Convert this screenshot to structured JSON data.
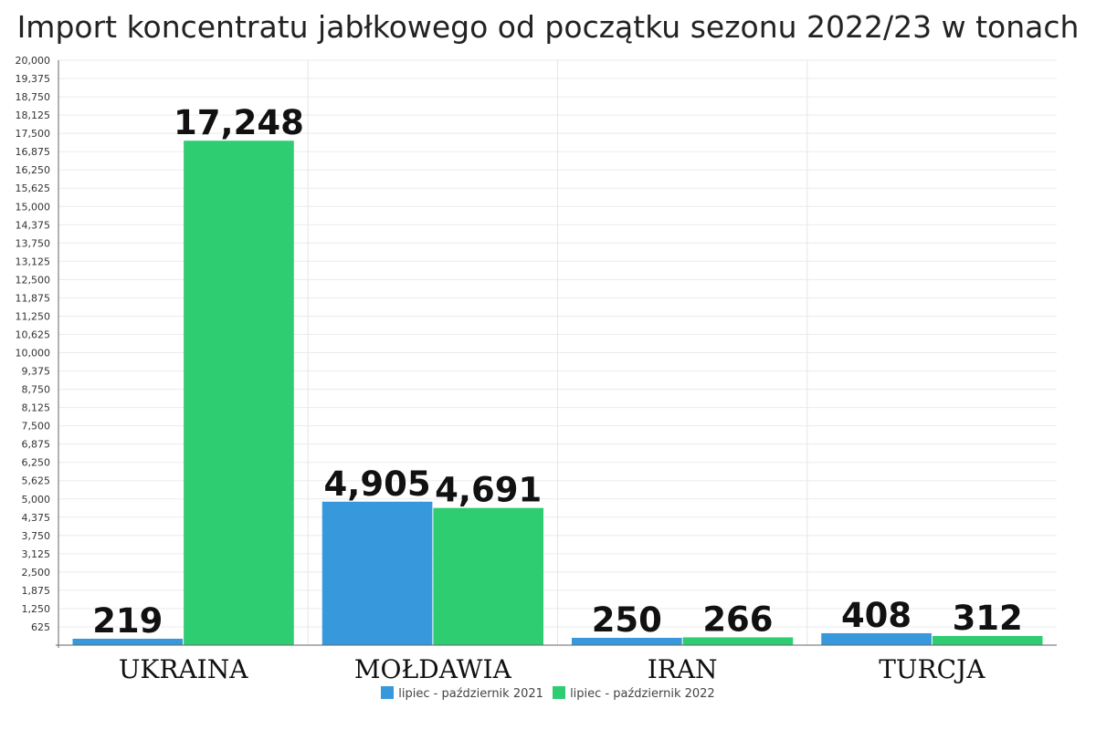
{
  "chart_data": {
    "type": "bar",
    "title": "Import koncentratu jabłkowego od początku sezonu 2022/23 w tonach",
    "categories": [
      "UKRAINA",
      "MOŁDAWIA",
      "IRAN",
      "TURCJA"
    ],
    "series": [
      {
        "name": "lipiec - październik 2021",
        "color": "#3799dc",
        "values": [
          219,
          4905,
          250,
          408
        ],
        "labels": [
          "219",
          "4,905",
          "250",
          "408"
        ]
      },
      {
        "name": "lipiec - październik 2022",
        "color": "#2ecd71",
        "values": [
          17248,
          4691,
          266,
          312
        ],
        "labels": [
          "17,248",
          "4,691",
          "266",
          "312"
        ]
      }
    ],
    "ylim": [
      0,
      20000
    ],
    "yticks": [
      625,
      1250,
      1875,
      2500,
      3125,
      3750,
      4375,
      5000,
      5625,
      6250,
      6875,
      7500,
      8125,
      8750,
      9375,
      10000,
      10625,
      11250,
      11875,
      12500,
      13125,
      13750,
      14375,
      15000,
      15625,
      16250,
      16875,
      17500,
      18125,
      18750,
      19375,
      20000
    ],
    "ytick_labels": [
      "625",
      "1,250",
      "1,875",
      "2,500",
      "3,125",
      "3,750",
      "4,375",
      "5,000",
      "5,625",
      "6,250",
      "6,875",
      "7,500",
      "8,125",
      "8,750",
      "9,375",
      "10,000",
      "10,625",
      "11,250",
      "11,875",
      "12,500",
      "13,125",
      "13,750",
      "14,375",
      "15,000",
      "15,625",
      "16,250",
      "16,875",
      "17,500",
      "18,125",
      "18,750",
      "19,375",
      "20,000"
    ],
    "xlabel": "",
    "ylabel": "",
    "grid": true,
    "legend_position": "bottom-center"
  }
}
